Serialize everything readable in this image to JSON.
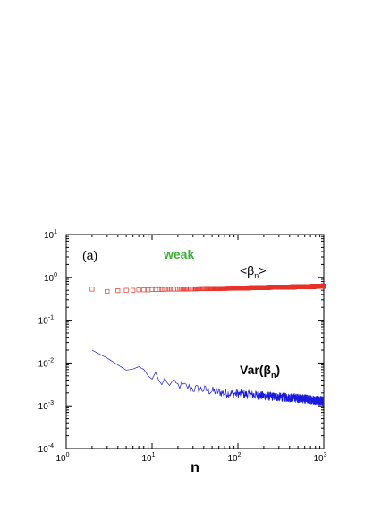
{
  "chart_data": {
    "type": "scatter",
    "panel_label": "(a)",
    "title_annotation": "weak",
    "xlabel": "n",
    "ylabel": "",
    "xscale": "log",
    "yscale": "log",
    "xlim": [
      1,
      1000
    ],
    "ylim": [
      0.0001,
      10
    ],
    "x_ticks": [
      {
        "base": "10",
        "exp": "0"
      },
      {
        "base": "10",
        "exp": "1"
      },
      {
        "base": "10",
        "exp": "2"
      },
      {
        "base": "10",
        "exp": "3"
      }
    ],
    "y_ticks": [
      {
        "base": "10",
        "exp": "-4"
      },
      {
        "base": "10",
        "exp": "-3"
      },
      {
        "base": "10",
        "exp": "-2"
      },
      {
        "base": "10",
        "exp": "-1"
      },
      {
        "base": "10",
        "exp": "0"
      },
      {
        "base": "10",
        "exp": "1"
      }
    ],
    "series": [
      {
        "name": "<βn>",
        "label_main": "<β",
        "label_sub": "n",
        "label_tail": ">",
        "style": "open-square-markers",
        "color": "#e8332a",
        "x": [
          2,
          3,
          4,
          5,
          6,
          7,
          8,
          9,
          10,
          12,
          15,
          20,
          30,
          50,
          100,
          200,
          500,
          1000
        ],
        "y": [
          0.53,
          0.47,
          0.49,
          0.5,
          0.5,
          0.51,
          0.51,
          0.51,
          0.52,
          0.52,
          0.53,
          0.53,
          0.54,
          0.55,
          0.56,
          0.58,
          0.6,
          0.62
        ]
      },
      {
        "name": "Var(βn)",
        "label_main": "Var(β",
        "label_sub": "n",
        "label_tail": ")",
        "style": "noisy-line",
        "color": "#1a1adf",
        "x": [
          2,
          3,
          4,
          5,
          6,
          7,
          8,
          9,
          10,
          11,
          12,
          13,
          14,
          15,
          17,
          20,
          25,
          30,
          40,
          50,
          70,
          100,
          150,
          200,
          300,
          500,
          700,
          1000
        ],
        "y": [
          0.02,
          0.013,
          0.009,
          0.0068,
          0.0072,
          0.0082,
          0.0071,
          0.005,
          0.0042,
          0.006,
          0.0039,
          0.0031,
          0.0044,
          0.0032,
          0.0034,
          0.003,
          0.0028,
          0.0025,
          0.0024,
          0.0022,
          0.002,
          0.0019,
          0.0018,
          0.0017,
          0.0016,
          0.0015,
          0.0014,
          0.0013
        ]
      }
    ],
    "colors": {
      "axis": "#000000",
      "weak_label": "#3cb034"
    }
  }
}
